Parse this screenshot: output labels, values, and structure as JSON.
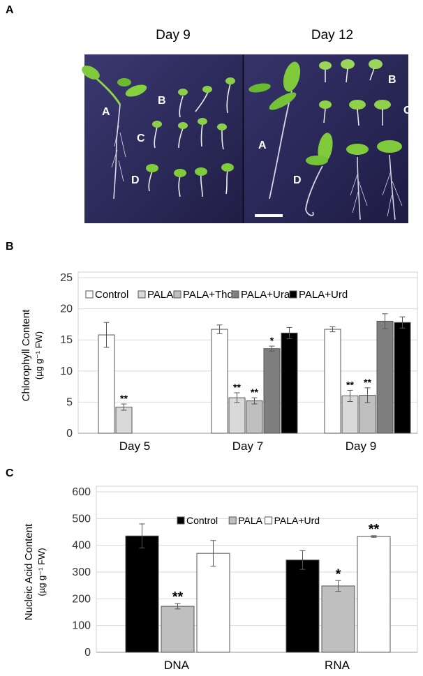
{
  "panels": {
    "a": "A",
    "b": "B",
    "c": "C"
  },
  "photo": {
    "titles": [
      "Day 9",
      "Day 12"
    ],
    "left_labels": [
      "A",
      "B",
      "C",
      "D"
    ],
    "right_labels": [
      "B",
      "C",
      "A",
      "D"
    ],
    "background_color": "#2c2a5a",
    "seedling_color": "#7fcb3b",
    "root_color": "#ddd8e8"
  },
  "chart_data": [
    {
      "type": "bar",
      "panel": "B",
      "categories": [
        "Day 5",
        "Day 7",
        "Day 9"
      ],
      "ylabel": "Chlorophyll Content",
      "ylabel_unit": "(µg g⁻¹ FW)",
      "ylim": [
        0,
        25
      ],
      "yticks": [
        0,
        5,
        10,
        15,
        20,
        25
      ],
      "grid": true,
      "legend_position": "top",
      "series": [
        {
          "name": "Control",
          "color": "#ffffff",
          "values": [
            15.8,
            16.7,
            16.7
          ],
          "errors": [
            2.0,
            0.7,
            0.4
          ],
          "sig": [
            "",
            "",
            ""
          ]
        },
        {
          "name": "PALA",
          "color": "#d9d9d9",
          "values": [
            4.2,
            5.7,
            6.0
          ],
          "errors": [
            0.5,
            0.8,
            0.9
          ],
          "sig": [
            "**",
            "**",
            "**"
          ]
        },
        {
          "name": "PALA+Thd",
          "color": "#bfbfbf",
          "values": [
            null,
            5.2,
            6.1
          ],
          "errors": [
            null,
            0.5,
            1.2
          ],
          "sig": [
            "",
            "**",
            "**"
          ]
        },
        {
          "name": "PALA+Ura",
          "color": "#7f7f7f",
          "values": [
            null,
            13.6,
            18.0
          ],
          "errors": [
            null,
            0.4,
            1.2
          ],
          "sig": [
            "",
            "*",
            ""
          ]
        },
        {
          "name": "PALA+Urd",
          "color": "#000000",
          "values": [
            null,
            16.1,
            17.8
          ],
          "errors": [
            null,
            0.9,
            0.9
          ],
          "sig": [
            "",
            "",
            ""
          ]
        }
      ]
    },
    {
      "type": "bar",
      "panel": "C",
      "categories": [
        "DNA",
        "RNA"
      ],
      "ylabel": "Nucleic Acid Content",
      "ylabel_unit": "(µg g⁻¹ FW)",
      "ylim": [
        0,
        600
      ],
      "yticks": [
        0,
        100,
        200,
        300,
        400,
        500,
        600
      ],
      "grid": true,
      "legend_position": "top",
      "series": [
        {
          "name": "Control",
          "color": "#000000",
          "values": [
            435,
            345
          ],
          "errors": [
            45,
            35
          ],
          "sig": [
            "",
            ""
          ]
        },
        {
          "name": "PALA",
          "color": "#bfbfbf",
          "values": [
            172,
            248
          ],
          "errors": [
            10,
            20
          ],
          "sig": [
            "**",
            "*"
          ]
        },
        {
          "name": "PALA+Urd",
          "color": "#ffffff",
          "values": [
            370,
            433
          ],
          "errors": [
            48,
            3
          ],
          "sig": [
            "",
            "**"
          ]
        }
      ]
    }
  ]
}
